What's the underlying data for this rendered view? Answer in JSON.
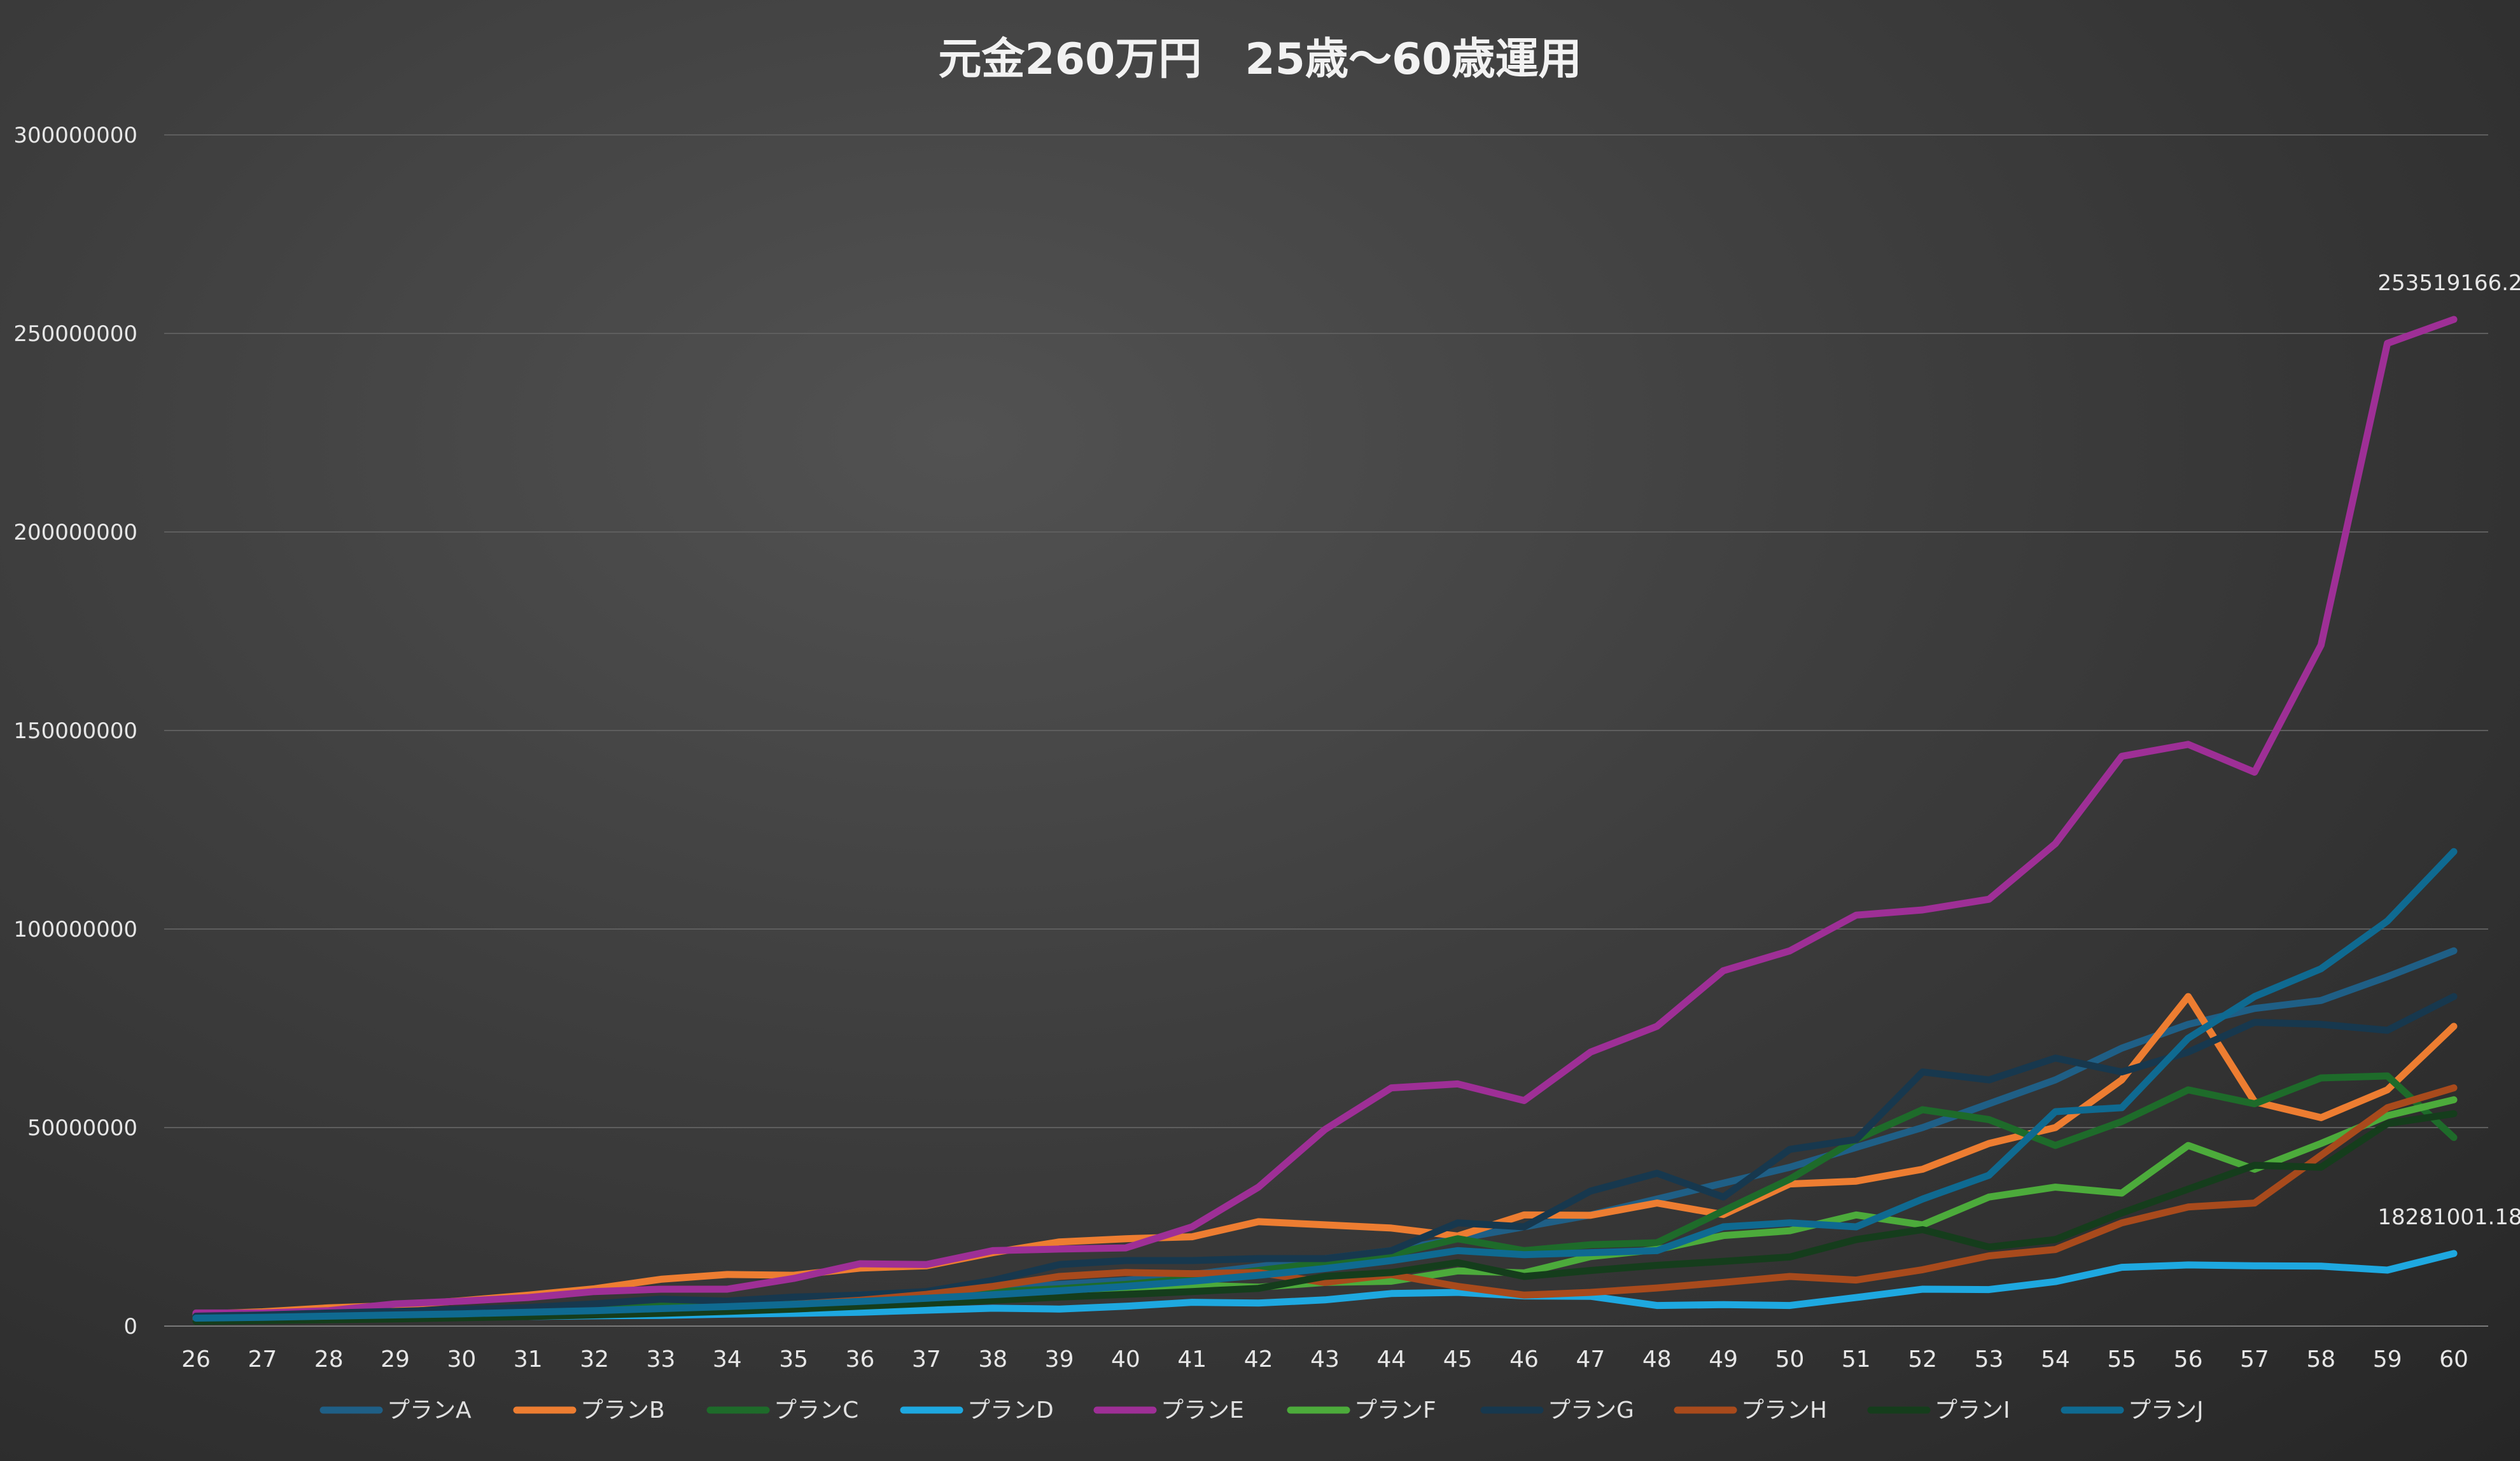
{
  "chart_data": {
    "type": "line",
    "title": "元金260万円　25歳～60歳運用",
    "xlabel": "",
    "ylabel": "",
    "ylim": [
      0,
      300000000
    ],
    "yticks": [
      "0",
      "50000000",
      "100000000",
      "150000000",
      "200000000",
      "250000000",
      "300000000"
    ],
    "grid": true,
    "legend": "bottom",
    "x": [
      26,
      27,
      28,
      29,
      30,
      31,
      32,
      33,
      34,
      35,
      36,
      37,
      38,
      39,
      40,
      41,
      42,
      43,
      44,
      45,
      46,
      47,
      48,
      49,
      50,
      51,
      52,
      53,
      54,
      55,
      56,
      57,
      58,
      59,
      60
    ],
    "series": [
      {
        "name": "プランA",
        "color": "#1f5f86",
        "values": [
          2800000,
          3000000,
          3300000,
          3600000,
          4000000,
          4500000,
          5000000,
          5600000,
          6200000,
          7000000,
          7800000,
          8500000,
          9500000,
          10500000,
          11500000,
          13000000,
          15000000,
          17000000,
          19000000,
          22000000,
          25000000,
          28000000,
          32000000,
          36000000,
          40000000,
          45000000,
          50000000,
          56000000,
          62000000,
          70000000,
          76000000,
          80000000,
          82000000,
          88000000,
          94500000
        ]
      },
      {
        "name": "プランB",
        "color": "#ed7d31",
        "values": [
          3000000,
          3600000,
          4600000,
          5200000,
          6400000,
          7800000,
          9400000,
          11800000,
          13000000,
          12800000,
          14600000,
          15200000,
          18500000,
          21200000,
          22000000,
          22500000,
          26300000,
          25500000,
          24700000,
          22700000,
          28000000,
          27900000,
          31000000,
          28100000,
          35800000,
          36500000,
          39500000,
          46000000,
          50000000,
          62000000,
          83000000,
          56500000,
          52500000,
          59500000,
          75500000
        ]
      },
      {
        "name": "プランC",
        "color": "#1e6b2a",
        "values": [
          2200000,
          2500000,
          2800000,
          3100000,
          3600000,
          4000000,
          4800000,
          5300000,
          5700000,
          6200000,
          7000000,
          7800000,
          8600000,
          9400000,
          10500000,
          12000000,
          14000000,
          16000000,
          18000000,
          22000000,
          19000000,
          20500000,
          21000000,
          29000000,
          37000000,
          47000000,
          54500000,
          52000000,
          45500000,
          51500000,
          59500000,
          56000000,
          62500000,
          63000000,
          47500000
        ]
      },
      {
        "name": "プランD",
        "color": "#1ea8e0",
        "values": [
          2600000,
          2300000,
          2200000,
          2200000,
          2300000,
          2400000,
          2600000,
          2700000,
          3000000,
          3200000,
          3500000,
          4000000,
          4500000,
          4300000,
          5000000,
          6000000,
          5800000,
          6600000,
          8200000,
          8500000,
          7600000,
          7500000,
          5200000,
          5400000,
          5200000,
          7200000,
          9300000,
          9200000,
          11200000,
          14800000,
          15400000,
          15200000,
          15100000,
          14100000,
          18281001.18
        ]
      },
      {
        "name": "プランE",
        "color": "#9e2f96",
        "values": [
          3300000,
          3300000,
          3900000,
          5600000,
          6300000,
          7200000,
          8700000,
          9300000,
          9300000,
          12000000,
          15700000,
          15500000,
          19000000,
          19400000,
          19700000,
          25000000,
          35000000,
          49500000,
          60000000,
          61000000,
          56800000,
          69000000,
          75500000,
          89500000,
          94500000,
          103500000,
          104800000,
          107500000,
          121500000,
          143500000,
          146500000,
          139500000,
          171500000,
          247500000,
          253519166.2
        ]
      },
      {
        "name": "プランF",
        "color": "#4cab3b",
        "values": [
          2000000,
          2100000,
          2300000,
          2500000,
          2700000,
          3000000,
          3400000,
          3900000,
          4500000,
          5200000,
          6000000,
          6800000,
          7800000,
          8700000,
          9000000,
          10300000,
          9800000,
          11000000,
          11300000,
          13900000,
          13400000,
          17500000,
          19300000,
          22800000,
          24000000,
          28000000,
          25500000,
          32500000,
          35000000,
          33500000,
          45500000,
          39500000,
          46000000,
          53000000,
          57000000
        ]
      },
      {
        "name": "プランG",
        "color": "#17384e",
        "values": [
          2500000,
          2800000,
          3300000,
          3700000,
          4200000,
          4700000,
          5600000,
          6800000,
          6300000,
          7300000,
          7800000,
          8700000,
          11500000,
          15500000,
          16500000,
          16500000,
          17000000,
          17000000,
          19000000,
          26000000,
          25000000,
          34000000,
          38500000,
          32500000,
          44500000,
          47000000,
          64000000,
          62000000,
          67500000,
          64000000,
          69000000,
          76500000,
          76000000,
          74500000,
          83000000
        ]
      },
      {
        "name": "プランH",
        "color": "#a84a1c",
        "values": [
          1500000,
          1700000,
          2000000,
          2300000,
          2600000,
          3000000,
          3500000,
          4000000,
          4700000,
          5500000,
          6500000,
          8000000,
          10000000,
          12500000,
          13500000,
          13200000,
          13500000,
          11000000,
          13000000,
          10000000,
          7800000,
          8500000,
          9600000,
          11000000,
          12500000,
          11600000,
          14200000,
          17700000,
          19300000,
          26000000,
          30000000,
          31000000,
          43000000,
          55000000,
          60000000
        ]
      },
      {
        "name": "プランI",
        "color": "#153d1c",
        "values": [
          1200000,
          1400000,
          1600000,
          1800000,
          2100000,
          2400000,
          2800000,
          3200000,
          3700000,
          4300000,
          5000000,
          5700000,
          6500000,
          7300000,
          8000000,
          8700000,
          9500000,
          12500000,
          13500000,
          16000000,
          12500000,
          14000000,
          15300000,
          16300000,
          17400000,
          21800000,
          24300000,
          19900000,
          21800000,
          28500000,
          34500000,
          40500000,
          40000000,
          51000000,
          53500000
        ]
      },
      {
        "name": "プランJ",
        "color": "#0f6a91",
        "values": [
          2000000,
          2200000,
          2500000,
          2800000,
          3100000,
          3500000,
          3900000,
          4400000,
          4900000,
          5500000,
          6200000,
          7000000,
          7900000,
          8900000,
          10000000,
          11300000,
          12800000,
          14500000,
          16500000,
          19000000,
          18000000,
          18500000,
          19000000,
          25000000,
          26000000,
          25000000,
          32000000,
          38000000,
          54000000,
          55000000,
          72500000,
          83000000,
          90000000,
          102000000,
          119500000
        ]
      }
    ],
    "data_labels": [
      {
        "series": "プランE",
        "x": 60,
        "text": "253519166.2"
      },
      {
        "series": "プランD",
        "x": 60,
        "text": "18281001.18"
      }
    ]
  }
}
